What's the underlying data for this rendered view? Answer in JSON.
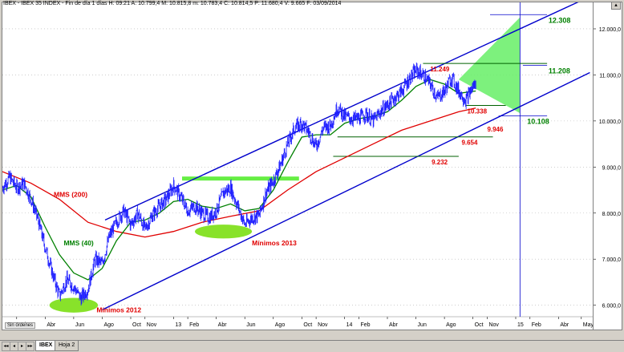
{
  "window": {
    "title": "IBEX - IBEX 35 INDEX - Fin de día 1 días  H: 09:21  A: 10.799,4  M: 10.815,8  m: 10.783,4  C: 10.814,5  P: 11.680,4  V: 9.665  F: 03/09/2014",
    "status_label": "Sin órdenes"
  },
  "tabs": {
    "active": "IBEX",
    "other": "Hoja 2",
    "nav": [
      "◂◂",
      "◂",
      "▸",
      "▸▸"
    ]
  },
  "colors": {
    "price": "#1a1aff",
    "mms200": "#e00000",
    "mms40": "#008000",
    "channel": "#0000cc",
    "zone": "#66ee44",
    "target_fill": "#66ee66"
  },
  "chart_data": {
    "type": "line",
    "title": "",
    "ylim": [
      5750,
      12400
    ],
    "y_ticks": [
      6000,
      7000,
      8000,
      9000,
      10000,
      11000,
      12000
    ],
    "y_tick_labels": [
      "6.000,0",
      "7.000,0",
      "8.000,0",
      "9.000,0",
      "10.000,0",
      "11.000,0",
      "12.000,0"
    ],
    "x_tick_labels": [
      "Feb",
      "Abr",
      "Jun",
      "Ago",
      "Oct",
      "Nov",
      "13",
      "Feb",
      "Abr",
      "Jun",
      "Ago",
      "Oct",
      "Nov",
      "14",
      "Feb",
      "Abr",
      "Jun",
      "Ago",
      "Oct",
      "Nov",
      "15",
      "Feb",
      "Abr",
      "May"
    ],
    "x_tick_index": [
      1,
      3,
      5,
      7,
      9,
      10,
      12,
      13,
      15,
      17,
      19,
      21,
      22,
      24,
      25,
      27,
      29,
      31,
      33,
      34,
      36,
      37,
      39,
      40.6
    ],
    "x_range": [
      0,
      41.4
    ],
    "price": {
      "name": "IBEX",
      "points": [
        [
          0.0,
          8550
        ],
        [
          0.5,
          8780
        ],
        [
          1.0,
          8550
        ],
        [
          1.5,
          8650
        ],
        [
          2.0,
          8300
        ],
        [
          2.5,
          7850
        ],
        [
          3.0,
          7250
        ],
        [
          3.5,
          6700
        ],
        [
          4.0,
          6200
        ],
        [
          4.5,
          6550
        ],
        [
          5.0,
          6400
        ],
        [
          5.5,
          6150
        ],
        [
          6.0,
          6350
        ],
        [
          6.5,
          7000
        ],
        [
          7.0,
          6900
        ],
        [
          7.5,
          7500
        ],
        [
          8.0,
          7800
        ],
        [
          8.5,
          8050
        ],
        [
          9.0,
          7750
        ],
        [
          9.5,
          8000
        ],
        [
          10.0,
          7650
        ],
        [
          10.5,
          7950
        ],
        [
          11.0,
          8150
        ],
        [
          11.5,
          8300
        ],
        [
          12.0,
          8600
        ],
        [
          12.5,
          8350
        ],
        [
          13.0,
          8050
        ],
        [
          13.5,
          8150
        ],
        [
          14.0,
          8000
        ],
        [
          14.5,
          7900
        ],
        [
          15.0,
          8050
        ],
        [
          15.5,
          8450
        ],
        [
          16.0,
          8550
        ],
        [
          16.5,
          8150
        ],
        [
          17.0,
          7750
        ],
        [
          17.5,
          7900
        ],
        [
          18.0,
          7950
        ],
        [
          18.5,
          8450
        ],
        [
          19.0,
          8700
        ],
        [
          19.5,
          9050
        ],
        [
          20.0,
          9500
        ],
        [
          20.5,
          9850
        ],
        [
          21.0,
          9950
        ],
        [
          21.5,
          9750
        ],
        [
          22.0,
          9450
        ],
        [
          22.5,
          9850
        ],
        [
          23.0,
          9900
        ],
        [
          23.5,
          10300
        ],
        [
          24.0,
          10100
        ],
        [
          24.5,
          10050
        ],
        [
          25.0,
          10050
        ],
        [
          25.5,
          10150
        ],
        [
          26.0,
          10000
        ],
        [
          26.5,
          10200
        ],
        [
          27.0,
          10350
        ],
        [
          27.5,
          10500
        ],
        [
          28.0,
          10650
        ],
        [
          28.5,
          10900
        ],
        [
          29.0,
          11100
        ],
        [
          29.5,
          11000
        ],
        [
          30.0,
          10800
        ],
        [
          30.5,
          10500
        ],
        [
          31.0,
          10650
        ],
        [
          31.5,
          10950
        ],
        [
          32.0,
          10650
        ],
        [
          32.5,
          10450
        ],
        [
          33.0,
          10750
        ],
        [
          33.2,
          10814
        ]
      ]
    },
    "series": [
      {
        "name": "MMS (200)",
        "points": [
          [
            0.0,
            8900
          ],
          [
            2.0,
            8650
          ],
          [
            4.0,
            8300
          ],
          [
            6.0,
            7800
          ],
          [
            8.0,
            7600
          ],
          [
            10.0,
            7480
          ],
          [
            12.0,
            7600
          ],
          [
            14.0,
            7800
          ],
          [
            16.0,
            7930
          ],
          [
            18.0,
            8050
          ],
          [
            20.0,
            8500
          ],
          [
            22.0,
            8900
          ],
          [
            24.0,
            9200
          ],
          [
            26.0,
            9500
          ],
          [
            28.0,
            9800
          ],
          [
            30.0,
            10000
          ],
          [
            32.0,
            10200
          ],
          [
            33.2,
            10280
          ]
        ]
      },
      {
        "name": "MMS (40)",
        "points": [
          [
            0.0,
            8500
          ],
          [
            1.0,
            8600
          ],
          [
            2.0,
            8350
          ],
          [
            3.0,
            7700
          ],
          [
            4.0,
            7100
          ],
          [
            5.0,
            6700
          ],
          [
            6.0,
            6550
          ],
          [
            7.0,
            6800
          ],
          [
            8.0,
            7400
          ],
          [
            9.0,
            7800
          ],
          [
            10.0,
            7850
          ],
          [
            11.0,
            8000
          ],
          [
            12.0,
            8250
          ],
          [
            13.0,
            8300
          ],
          [
            14.0,
            8150
          ],
          [
            15.0,
            8100
          ],
          [
            16.0,
            8200
          ],
          [
            17.0,
            8050
          ],
          [
            18.0,
            8100
          ],
          [
            19.0,
            8500
          ],
          [
            20.0,
            9100
          ],
          [
            21.0,
            9650
          ],
          [
            22.0,
            9700
          ],
          [
            23.0,
            9700
          ],
          [
            24.0,
            9950
          ],
          [
            25.0,
            10050
          ],
          [
            26.0,
            10100
          ],
          [
            27.0,
            10200
          ],
          [
            28.0,
            10450
          ],
          [
            29.0,
            10750
          ],
          [
            30.0,
            10900
          ],
          [
            31.0,
            10800
          ],
          [
            32.0,
            10600
          ],
          [
            33.2,
            10650
          ]
        ]
      }
    ],
    "channel_upper": [
      [
        7.2,
        7850
      ],
      [
        41.2,
        12700
      ]
    ],
    "channel_lower": [
      [
        7.0,
        5900
      ],
      [
        41.2,
        11050
      ]
    ],
    "levels": [
      {
        "label": "11.249",
        "value": 11249,
        "x_from": 29.5,
        "x_to": 38.2,
        "label_x": 30,
        "color": "#e00000"
      },
      {
        "label": "10.338",
        "value": 10338,
        "x_from": 32.5,
        "x_to": 35.3,
        "label_x": 32.6,
        "color": "#e00000"
      },
      {
        "label": "9.946",
        "value": 9946,
        "x_from": 34.0,
        "x_to": 34.0,
        "label_x": 34.0,
        "color": "#e00000"
      },
      {
        "label": "9.654",
        "value": 9654,
        "x_from": 23.5,
        "x_to": 34.4,
        "label_x": 32.2,
        "color": "#e00000"
      },
      {
        "label": "9.232",
        "value": 9232,
        "x_from": 23.2,
        "x_to": 32.0,
        "label_x": 30.1,
        "color": "#e00000"
      }
    ],
    "targets": [
      {
        "label": "12.308",
        "value": 12308,
        "x_from": 34.2,
        "x_to": 38.2,
        "label_x": 38.3,
        "color": "#008000"
      },
      {
        "label": "11.208",
        "value": 11208,
        "x_from": 36.5,
        "x_to": 38.2,
        "label_x": 38.3,
        "color": "#008000"
      },
      {
        "label": "10.108",
        "value": 10108,
        "x_from": 34.8,
        "x_to": 38.2,
        "label_x": 36.8,
        "color": "#008000"
      }
    ],
    "resistance_zone": {
      "x_from": 12.6,
      "x_to": 20.8,
      "value": 8750
    },
    "vertical_marker_x": 36.3,
    "annotations": [
      {
        "text": "MMS (200)",
        "x": 3.6,
        "y": 8350,
        "color": "#e00000"
      },
      {
        "text": "MMS (40)",
        "x": 4.3,
        "y": 7300,
        "color": "#008000"
      },
      {
        "text": "Mínimos 2012",
        "x": 6.6,
        "y": 5850,
        "color": "#e00000"
      },
      {
        "text": "Mínimos 2013",
        "x": 17.5,
        "y": 7300,
        "color": "#e00000"
      }
    ],
    "zones": [
      {
        "name": "minimos-2012",
        "x": 5.0,
        "y": 6000,
        "rx": 1.7,
        "ry": 160
      },
      {
        "name": "minimos-2013",
        "x": 15.5,
        "y": 7600,
        "rx": 2.0,
        "ry": 150
      }
    ],
    "target_triangle": [
      [
        32.0,
        10900
      ],
      [
        36.3,
        12250
      ],
      [
        36.3,
        10170
      ]
    ]
  }
}
